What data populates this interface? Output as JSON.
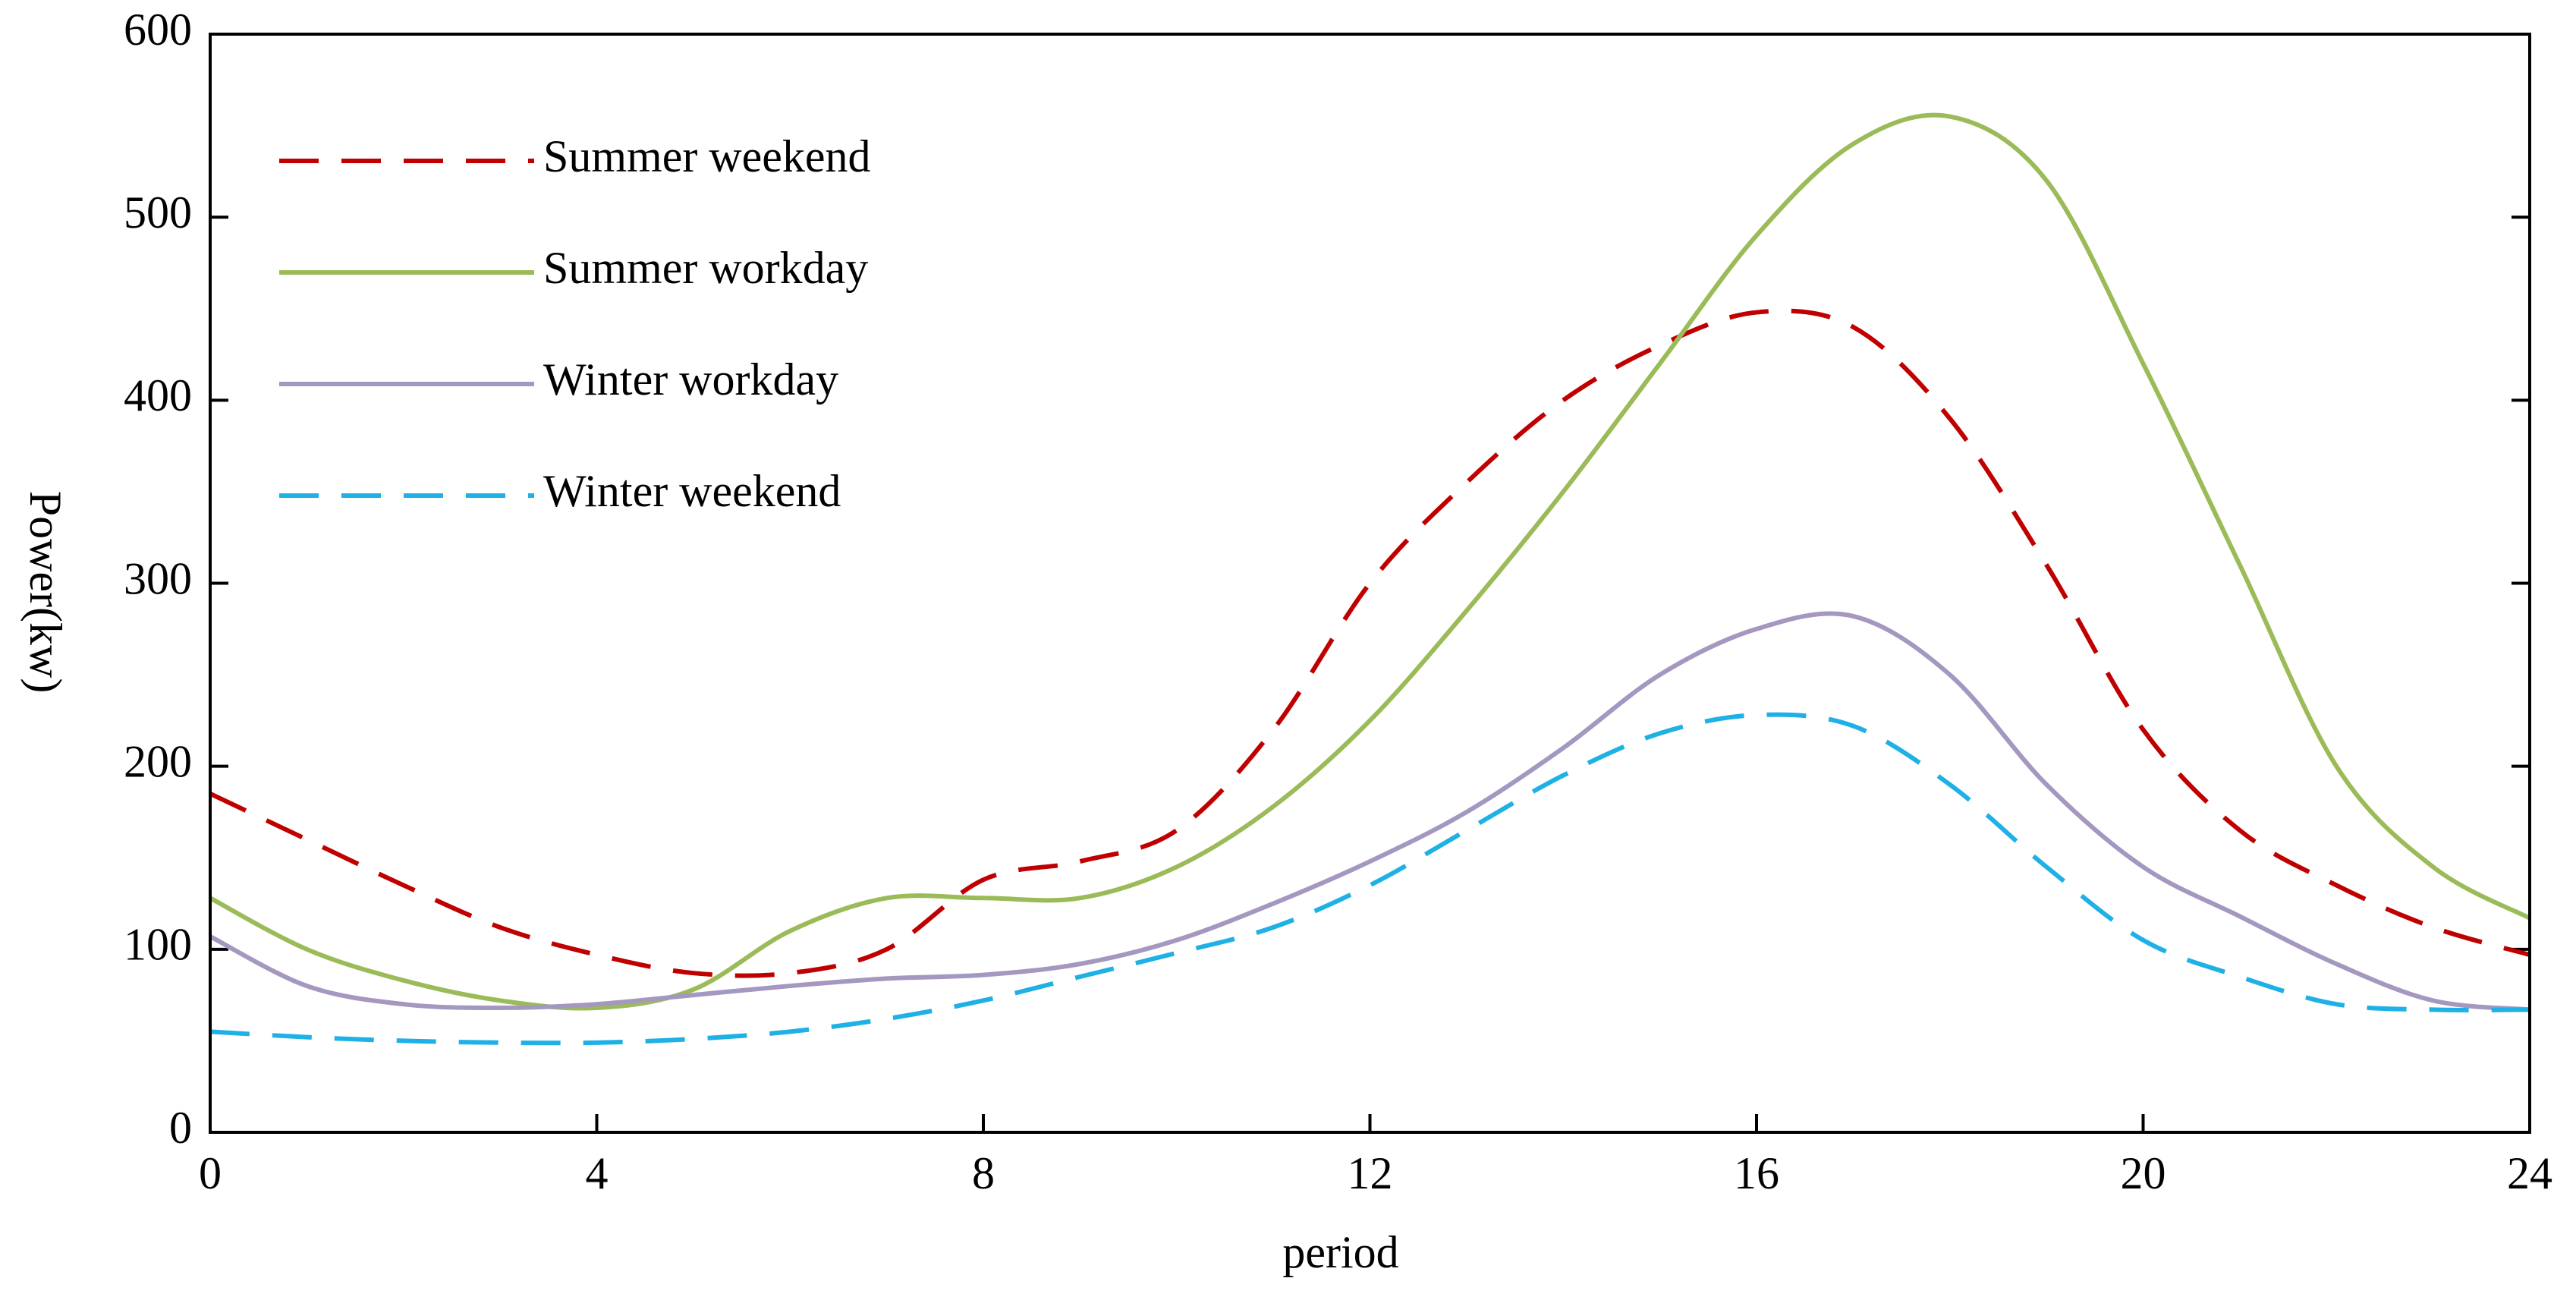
{
  "chart_data": {
    "type": "line",
    "x_label": "period",
    "y_label": "Power(kw)",
    "x": [
      0,
      1,
      2,
      3,
      4,
      5,
      6,
      7,
      8,
      9,
      10,
      11,
      12,
      13,
      14,
      15,
      16,
      17,
      18,
      19,
      20,
      21,
      22,
      23,
      24
    ],
    "series": [
      {
        "name": "Summer weekend",
        "color": "#c00000",
        "dash": true,
        "values": [
          185,
          160,
          135,
          112,
          97,
          87,
          87,
          100,
          138,
          148,
          165,
          220,
          300,
          355,
          400,
          430,
          448,
          440,
          390,
          310,
          220,
          165,
          135,
          112,
          97
        ]
      },
      {
        "name": "Summer workday",
        "color": "#9bbb59",
        "dash": false,
        "values": [
          128,
          100,
          83,
          72,
          68,
          78,
          110,
          128,
          128,
          128,
          145,
          178,
          225,
          285,
          350,
          420,
          490,
          540,
          555,
          520,
          420,
          310,
          200,
          145,
          117
        ]
      },
      {
        "name": "Winter workday",
        "color": "#a497c0",
        "dash": false,
        "values": [
          107,
          80,
          70,
          68,
          70,
          75,
          80,
          84,
          86,
          92,
          105,
          125,
          148,
          175,
          210,
          250,
          275,
          282,
          250,
          190,
          145,
          118,
          92,
          72,
          67
        ]
      },
      {
        "name": "Winter weekend",
        "color": "#1fb0e6",
        "dash": true,
        "values": [
          55,
          52,
          50,
          49,
          49,
          51,
          55,
          62,
          72,
          85,
          98,
          112,
          135,
          165,
          195,
          218,
          228,
          222,
          190,
          145,
          105,
          85,
          70,
          67,
          67
        ]
      }
    ],
    "xlim": [
      0,
      24
    ],
    "xticks": [
      0,
      4,
      8,
      12,
      16,
      20,
      24
    ],
    "ylim": [
      0,
      600
    ],
    "yticks": [
      0,
      100,
      200,
      300,
      400,
      500,
      600
    ],
    "legend": "upper left"
  }
}
